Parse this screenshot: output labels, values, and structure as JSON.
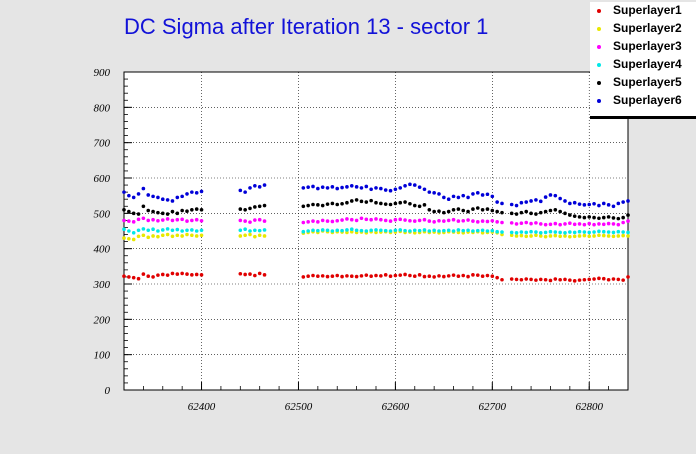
{
  "title": "DC Sigma after Iteration 13 - sector 1",
  "legend": [
    {
      "label": "Superlayer1",
      "color": "#e00000"
    },
    {
      "label": "Superlayer2",
      "color": "#e8e800"
    },
    {
      "label": "Superlayer3",
      "color": "#ff00ff"
    },
    {
      "label": "Superlayer4",
      "color": "#00e8e8"
    },
    {
      "label": "Superlayer5",
      "color": "#000000"
    },
    {
      "label": "Superlayer6",
      "color": "#0000d8"
    }
  ],
  "chart_data": {
    "type": "scatter",
    "title": "DC Sigma after Iteration 13 - sector 1",
    "xlabel": "",
    "ylabel": "",
    "xlim": [
      62320,
      62840
    ],
    "ylim": [
      0,
      900
    ],
    "xticks": [
      "62400",
      "62500",
      "62600",
      "62700",
      "62800"
    ],
    "yticks": [
      "0",
      "100",
      "200",
      "300",
      "400",
      "500",
      "600",
      "700",
      "800",
      "900"
    ],
    "grid": true,
    "legend_position": "top-right",
    "x": [
      62320,
      62325,
      62330,
      62335,
      62340,
      62345,
      62350,
      62355,
      62360,
      62365,
      62370,
      62375,
      62380,
      62385,
      62390,
      62395,
      62400,
      62440,
      62445,
      62450,
      62455,
      62460,
      62465,
      62505,
      62510,
      62515,
      62520,
      62525,
      62530,
      62535,
      62540,
      62545,
      62550,
      62555,
      62560,
      62565,
      62570,
      62575,
      62580,
      62585,
      62590,
      62595,
      62600,
      62605,
      62610,
      62615,
      62620,
      62625,
      62630,
      62635,
      62640,
      62645,
      62650,
      62655,
      62660,
      62665,
      62670,
      62675,
      62680,
      62685,
      62690,
      62695,
      62700,
      62705,
      62710,
      62720,
      62725,
      62730,
      62735,
      62740,
      62745,
      62750,
      62755,
      62760,
      62765,
      62770,
      62775,
      62780,
      62785,
      62790,
      62795,
      62800,
      62805,
      62810,
      62815,
      62820,
      62825,
      62830,
      62835,
      62840
    ],
    "series": [
      {
        "name": "Superlayer1",
        "color": "#e00000",
        "values": [
          322,
          320,
          318,
          315,
          328,
          322,
          320,
          325,
          327,
          325,
          330,
          328,
          330,
          328,
          326,
          327,
          326,
          329,
          327,
          328,
          324,
          330,
          326,
          320,
          322,
          324,
          322,
          323,
          321,
          322,
          324,
          321,
          323,
          322,
          321,
          323,
          325,
          322,
          324,
          323,
          326,
          322,
          324,
          325,
          327,
          324,
          322,
          326,
          321,
          322,
          320,
          323,
          321,
          323,
          325,
          322,
          324,
          321,
          326,
          325,
          322,
          324,
          322,
          318,
          312,
          314,
          313,
          312,
          314,
          313,
          311,
          313,
          312,
          310,
          314,
          312,
          313,
          311,
          309,
          311,
          312,
          313,
          314,
          316,
          315,
          312,
          314,
          313,
          311,
          320
        ]
      },
      {
        "name": "Superlayer2",
        "color": "#e8e800",
        "values": [
          430,
          428,
          426,
          435,
          438,
          432,
          436,
          434,
          438,
          440,
          435,
          438,
          436,
          440,
          438,
          436,
          438,
          436,
          438,
          440,
          434,
          438,
          436,
          444,
          446,
          448,
          446,
          450,
          448,
          446,
          448,
          447,
          446,
          448,
          446,
          447,
          445,
          448,
          446,
          447,
          448,
          446,
          447,
          449,
          446,
          447,
          445,
          446,
          448,
          446,
          447,
          445,
          446,
          448,
          447,
          446,
          445,
          447,
          446,
          448,
          445,
          446,
          447,
          445,
          440,
          438,
          436,
          437,
          435,
          436,
          438,
          436,
          434,
          436,
          437,
          435,
          436,
          434,
          435,
          436,
          437,
          435,
          436,
          438,
          437,
          436,
          435,
          436,
          437,
          436
        ]
      },
      {
        "name": "Superlayer3",
        "color": "#ff00ff",
        "values": [
          480,
          478,
          476,
          483,
          486,
          480,
          482,
          479,
          481,
          484,
          480,
          482,
          483,
          478,
          480,
          482,
          479,
          480,
          478,
          475,
          481,
          482,
          478,
          474,
          476,
          478,
          476,
          480,
          478,
          477,
          479,
          481,
          484,
          482,
          480,
          486,
          483,
          482,
          484,
          482,
          480,
          478,
          482,
          483,
          481,
          479,
          478,
          480,
          482,
          478,
          476,
          479,
          478,
          480,
          482,
          478,
          479,
          481,
          478,
          476,
          478,
          477,
          479,
          476,
          474,
          473,
          470,
          472,
          474,
          471,
          473,
          470,
          468,
          469,
          471,
          468,
          470,
          472,
          469,
          470,
          468,
          471,
          468,
          470,
          469,
          471,
          470,
          468,
          474,
          478
        ]
      },
      {
        "name": "Superlayer4",
        "color": "#00e8e8",
        "values": [
          455,
          450,
          445,
          452,
          456,
          452,
          455,
          450,
          453,
          456,
          452,
          454,
          450,
          452,
          453,
          450,
          452,
          452,
          455,
          450,
          452,
          451,
          453,
          448,
          450,
          452,
          451,
          453,
          452,
          450,
          452,
          451,
          453,
          455,
          452,
          451,
          450,
          452,
          453,
          452,
          451,
          450,
          452,
          453,
          451,
          450,
          452,
          451,
          453,
          450,
          452,
          450,
          451,
          452,
          450,
          453,
          451,
          452,
          450,
          451,
          452,
          450,
          451,
          448,
          447,
          446,
          445,
          447,
          446,
          448,
          447,
          445,
          446,
          448,
          447,
          446,
          445,
          447,
          446,
          448,
          447,
          446,
          447,
          449,
          448,
          447,
          446,
          448,
          447,
          446
        ]
      },
      {
        "name": "Superlayer5",
        "color": "#000000",
        "values": [
          510,
          505,
          500,
          498,
          520,
          508,
          505,
          502,
          500,
          498,
          505,
          500,
          508,
          506,
          510,
          512,
          510,
          512,
          510,
          514,
          518,
          520,
          522,
          520,
          522,
          525,
          524,
          522,
          526,
          528,
          525,
          527,
          530,
          535,
          538,
          534,
          532,
          536,
          530,
          528,
          526,
          525,
          528,
          530,
          532,
          527,
          522,
          520,
          524,
          510,
          505,
          506,
          502,
          505,
          510,
          512,
          508,
          505,
          512,
          515,
          510,
          512,
          508,
          505,
          502,
          500,
          498,
          502,
          505,
          500,
          498,
          502,
          505,
          508,
          510,
          505,
          500,
          495,
          492,
          490,
          488,
          490,
          488,
          486,
          488,
          490,
          487,
          485,
          488,
          495
        ]
      },
      {
        "name": "Superlayer6",
        "color": "#0000d8",
        "values": [
          560,
          550,
          545,
          555,
          570,
          552,
          548,
          545,
          540,
          538,
          535,
          545,
          548,
          555,
          560,
          558,
          562,
          565,
          560,
          572,
          578,
          575,
          580,
          572,
          574,
          576,
          570,
          574,
          572,
          575,
          570,
          573,
          575,
          578,
          575,
          572,
          576,
          568,
          572,
          570,
          566,
          564,
          568,
          572,
          578,
          582,
          580,
          574,
          568,
          560,
          558,
          555,
          545,
          540,
          548,
          545,
          550,
          545,
          555,
          558,
          552,
          554,
          548,
          532,
          528,
          525,
          522,
          530,
          532,
          535,
          538,
          534,
          546,
          552,
          550,
          542,
          535,
          528,
          530,
          526,
          524,
          525,
          527,
          522,
          528,
          524,
          520,
          528,
          532,
          535
        ]
      }
    ]
  }
}
